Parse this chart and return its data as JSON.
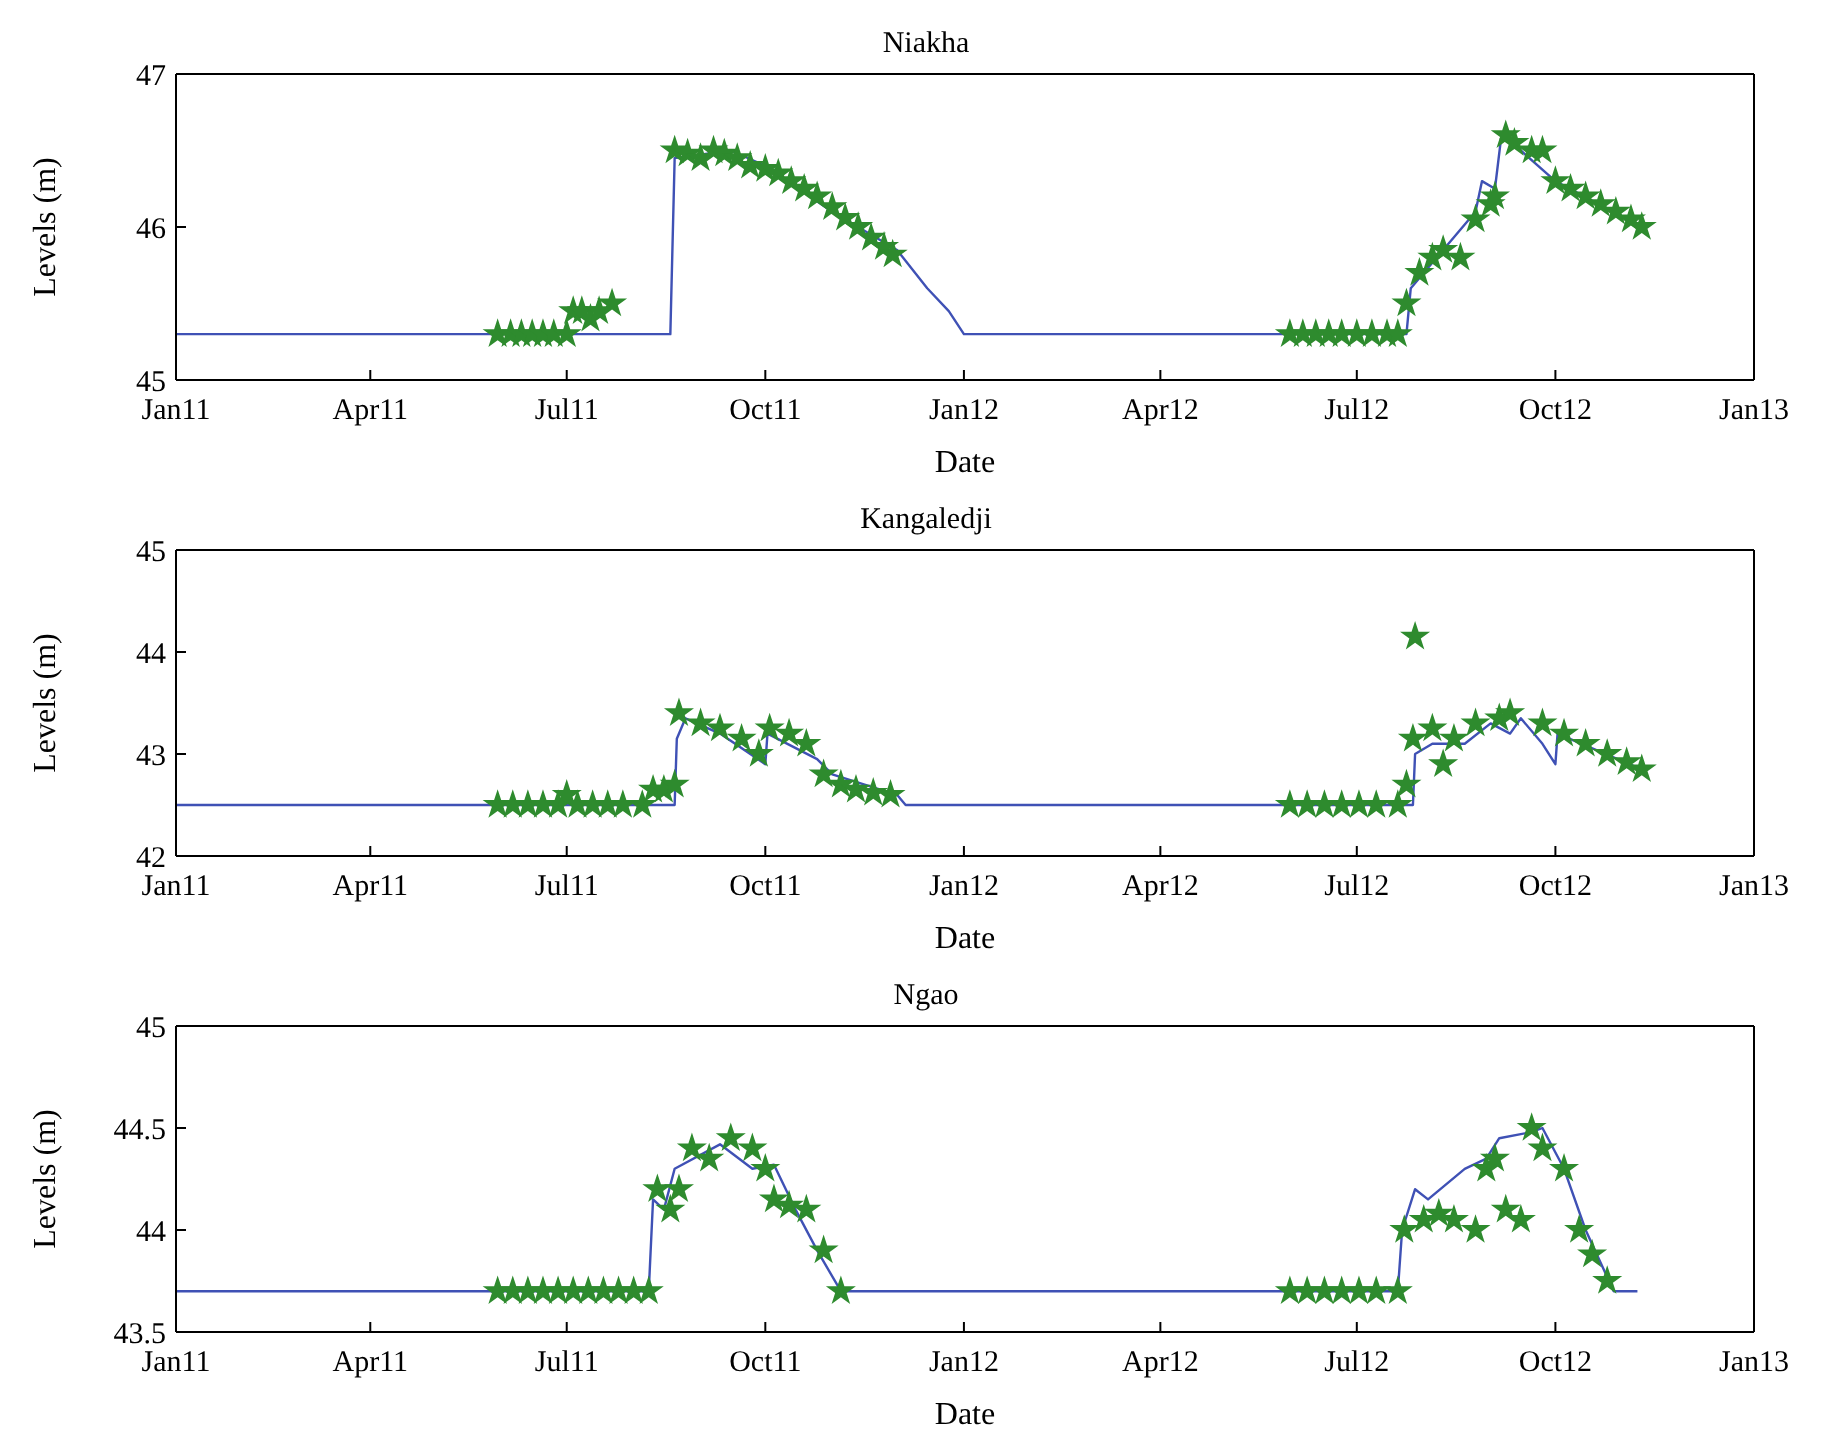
{
  "chart_data": [
    {
      "type": "line",
      "title": "Niakha",
      "xlabel": "Date",
      "ylabel": "Levels (m)",
      "xlim": [
        "2011-01-01",
        "2013-01-01"
      ],
      "xticks": [
        {
          "value": "2011-01-01",
          "label": "Jan11"
        },
        {
          "value": "2011-04-01",
          "label": "Apr11"
        },
        {
          "value": "2011-07-01",
          "label": "Jul11"
        },
        {
          "value": "2011-10-01",
          "label": "Oct11"
        },
        {
          "value": "2012-01-01",
          "label": "Jan12"
        },
        {
          "value": "2012-04-01",
          "label": "Apr12"
        },
        {
          "value": "2012-07-01",
          "label": "Jul12"
        },
        {
          "value": "2012-10-01",
          "label": "Oct12"
        },
        {
          "value": "2013-01-01",
          "label": "Jan13"
        }
      ],
      "ylim": [
        45,
        47
      ],
      "yticks": [
        45,
        46,
        47
      ],
      "grid": false,
      "legend": false,
      "series": [
        {
          "type": "line",
          "color": "#3f51b5",
          "marker": "none",
          "x": [
            "2011-01-01",
            "2011-08-18",
            "2011-08-20",
            "2011-09-15",
            "2011-10-01",
            "2011-11-01",
            "2011-12-01",
            "2011-12-15",
            "2011-12-25",
            "2012-01-01",
            "2012-07-24",
            "2012-07-26",
            "2012-08-10",
            "2012-08-25",
            "2012-08-28",
            "2012-09-03",
            "2012-09-06",
            "2012-09-15",
            "2012-10-01",
            "2012-11-10"
          ],
          "values": [
            45.3,
            45.3,
            46.45,
            46.5,
            46.4,
            46.1,
            45.85,
            45.6,
            45.45,
            45.3,
            45.3,
            45.6,
            45.85,
            46.1,
            46.3,
            46.25,
            46.6,
            46.5,
            46.3,
            46.0
          ]
        },
        {
          "type": "scatter",
          "color": "#2e8b2e",
          "marker": "star",
          "x": [
            "2011-05-30",
            "2011-06-05",
            "2011-06-10",
            "2011-06-15",
            "2011-06-20",
            "2011-06-25",
            "2011-07-01",
            "2011-07-04",
            "2011-07-08",
            "2011-07-12",
            "2011-07-16",
            "2011-07-22",
            "2011-08-20",
            "2011-08-26",
            "2011-09-01",
            "2011-09-07",
            "2011-09-12",
            "2011-09-18",
            "2011-09-24",
            "2011-10-01",
            "2011-10-07",
            "2011-10-13",
            "2011-10-19",
            "2011-10-25",
            "2011-11-01",
            "2011-11-07",
            "2011-11-13",
            "2011-11-19",
            "2011-11-25",
            "2011-11-29",
            "2012-05-31",
            "2012-06-06",
            "2012-06-12",
            "2012-06-18",
            "2012-06-24",
            "2012-07-01",
            "2012-07-08",
            "2012-07-15",
            "2012-07-20",
            "2012-07-24",
            "2012-07-30",
            "2012-08-05",
            "2012-08-10",
            "2012-08-18",
            "2012-08-25",
            "2012-09-01",
            "2012-09-03",
            "2012-09-08",
            "2012-09-12",
            "2012-09-20",
            "2012-09-25",
            "2012-10-01",
            "2012-10-08",
            "2012-10-15",
            "2012-10-22",
            "2012-10-29",
            "2012-11-05",
            "2012-11-10"
          ],
          "values": [
            45.3,
            45.3,
            45.3,
            45.3,
            45.3,
            45.3,
            45.3,
            45.45,
            45.45,
            45.4,
            45.45,
            45.5,
            46.5,
            46.48,
            46.45,
            46.5,
            46.48,
            46.45,
            46.4,
            46.38,
            46.35,
            46.3,
            46.25,
            46.2,
            46.13,
            46.06,
            46.0,
            45.93,
            45.87,
            45.82,
            45.3,
            45.3,
            45.3,
            45.3,
            45.3,
            45.3,
            45.3,
            45.3,
            45.3,
            45.5,
            45.7,
            45.8,
            45.85,
            45.8,
            46.05,
            46.15,
            46.2,
            46.6,
            46.55,
            46.5,
            46.5,
            46.3,
            46.25,
            46.2,
            46.15,
            46.1,
            46.05,
            46.0
          ]
        }
      ]
    },
    {
      "type": "line",
      "title": "Kangaledji",
      "xlabel": "Date",
      "ylabel": "Levels (m)",
      "xlim": [
        "2011-01-01",
        "2013-01-01"
      ],
      "xticks": [
        {
          "value": "2011-01-01",
          "label": "Jan11"
        },
        {
          "value": "2011-04-01",
          "label": "Apr11"
        },
        {
          "value": "2011-07-01",
          "label": "Jul11"
        },
        {
          "value": "2011-10-01",
          "label": "Oct11"
        },
        {
          "value": "2012-01-01",
          "label": "Jan12"
        },
        {
          "value": "2012-04-01",
          "label": "Apr12"
        },
        {
          "value": "2012-07-01",
          "label": "Jul12"
        },
        {
          "value": "2012-10-01",
          "label": "Oct12"
        },
        {
          "value": "2013-01-01",
          "label": "Jan13"
        }
      ],
      "ylim": [
        42,
        45
      ],
      "yticks": [
        42,
        43,
        44,
        45
      ],
      "grid": false,
      "legend": false,
      "series": [
        {
          "type": "line",
          "color": "#3f51b5",
          "marker": "none",
          "x": [
            "2011-01-01",
            "2011-08-20",
            "2011-08-21",
            "2011-08-25",
            "2011-09-10",
            "2011-10-01",
            "2011-10-02",
            "2011-10-25",
            "2011-11-01",
            "2011-12-01",
            "2011-12-05",
            "2012-07-27",
            "2012-07-28",
            "2012-08-05",
            "2012-08-20",
            "2012-09-01",
            "2012-09-10",
            "2012-09-15",
            "2012-09-25",
            "2012-10-01",
            "2012-10-02",
            "2012-11-10"
          ],
          "values": [
            42.5,
            42.5,
            43.15,
            43.35,
            43.2,
            42.9,
            43.2,
            42.95,
            42.8,
            42.6,
            42.5,
            42.5,
            43.0,
            43.1,
            43.1,
            43.3,
            43.2,
            43.35,
            43.1,
            42.9,
            43.2,
            42.85
          ]
        },
        {
          "type": "scatter",
          "color": "#2e8b2e",
          "marker": "star",
          "x": [
            "2011-05-30",
            "2011-06-06",
            "2011-06-13",
            "2011-06-20",
            "2011-06-27",
            "2011-07-01",
            "2011-07-06",
            "2011-07-13",
            "2011-07-20",
            "2011-07-27",
            "2011-08-05",
            "2011-08-10",
            "2011-08-15",
            "2011-08-20",
            "2011-08-22",
            "2011-09-01",
            "2011-09-10",
            "2011-09-20",
            "2011-09-28",
            "2011-10-03",
            "2011-10-12",
            "2011-10-20",
            "2011-10-28",
            "2011-11-05",
            "2011-11-12",
            "2011-11-20",
            "2011-11-28",
            "2012-05-31",
            "2012-06-08",
            "2012-06-16",
            "2012-06-24",
            "2012-07-02",
            "2012-07-10",
            "2012-07-20",
            "2012-07-24",
            "2012-07-27",
            "2012-07-28",
            "2012-08-05",
            "2012-08-10",
            "2012-08-15",
            "2012-08-25",
            "2012-09-05",
            "2012-09-10",
            "2012-09-25",
            "2012-10-05",
            "2012-10-15",
            "2012-10-25",
            "2012-11-03",
            "2012-11-10"
          ],
          "values": [
            42.5,
            42.5,
            42.5,
            42.5,
            42.5,
            42.6,
            42.5,
            42.5,
            42.5,
            42.5,
            42.5,
            42.65,
            42.65,
            42.7,
            43.4,
            43.3,
            43.25,
            43.15,
            43.0,
            43.25,
            43.2,
            43.1,
            42.8,
            42.7,
            42.65,
            42.62,
            42.6,
            42.5,
            42.5,
            42.5,
            42.5,
            42.5,
            42.5,
            42.5,
            42.7,
            43.15,
            44.15,
            43.25,
            42.9,
            43.15,
            43.3,
            43.35,
            43.4,
            43.3,
            43.2,
            43.1,
            43.0,
            42.92,
            42.85
          ]
        }
      ]
    },
    {
      "type": "line",
      "title": "Ngao",
      "xlabel": "Date",
      "ylabel": "Levels (m)",
      "xlim": [
        "2011-01-01",
        "2013-01-01"
      ],
      "xticks": [
        {
          "value": "2011-01-01",
          "label": "Jan11"
        },
        {
          "value": "2011-04-01",
          "label": "Apr11"
        },
        {
          "value": "2011-07-01",
          "label": "Jul11"
        },
        {
          "value": "2011-10-01",
          "label": "Oct11"
        },
        {
          "value": "2012-01-01",
          "label": "Jan12"
        },
        {
          "value": "2012-04-01",
          "label": "Apr12"
        },
        {
          "value": "2012-07-01",
          "label": "Jul12"
        },
        {
          "value": "2012-10-01",
          "label": "Oct12"
        },
        {
          "value": "2013-01-01",
          "label": "Jan13"
        }
      ],
      "ylim": [
        43.5,
        45
      ],
      "yticks": [
        43.5,
        44,
        44.5,
        45
      ],
      "grid": false,
      "legend": false,
      "series": [
        {
          "type": "line",
          "color": "#3f51b5",
          "marker": "none",
          "x": [
            "2011-01-01",
            "2011-08-08",
            "2011-08-10",
            "2011-08-15",
            "2011-08-20",
            "2011-09-10",
            "2011-09-25",
            "2011-10-05",
            "2011-10-15",
            "2011-10-25",
            "2011-11-05",
            "2012-07-20",
            "2012-07-22",
            "2012-07-28",
            "2012-08-03",
            "2012-08-20",
            "2012-08-30",
            "2012-09-05",
            "2012-09-20",
            "2012-09-25",
            "2012-10-05",
            "2012-10-15",
            "2012-10-28",
            "2012-11-08"
          ],
          "values": [
            43.7,
            43.7,
            44.15,
            44.1,
            44.3,
            44.42,
            44.3,
            44.32,
            44.1,
            43.9,
            43.7,
            43.7,
            44.0,
            44.2,
            44.15,
            44.3,
            44.35,
            44.45,
            44.48,
            44.5,
            44.3,
            44.0,
            43.7,
            43.7
          ]
        },
        {
          "type": "scatter",
          "color": "#2e8b2e",
          "marker": "star",
          "x": [
            "2011-05-30",
            "2011-06-06",
            "2011-06-13",
            "2011-06-20",
            "2011-06-27",
            "2011-07-04",
            "2011-07-11",
            "2011-07-18",
            "2011-07-25",
            "2011-08-01",
            "2011-08-08",
            "2011-08-12",
            "2011-08-18",
            "2011-08-22",
            "2011-08-28",
            "2011-09-05",
            "2011-09-15",
            "2011-09-25",
            "2011-10-01",
            "2011-10-05",
            "2011-10-12",
            "2011-10-20",
            "2011-10-28",
            "2011-11-05",
            "2012-05-31",
            "2012-06-08",
            "2012-06-16",
            "2012-06-24",
            "2012-07-02",
            "2012-07-10",
            "2012-07-20",
            "2012-07-23",
            "2012-08-01",
            "2012-08-08",
            "2012-08-15",
            "2012-08-25",
            "2012-08-30",
            "2012-09-03",
            "2012-09-08",
            "2012-09-15",
            "2012-09-20",
            "2012-09-25",
            "2012-10-05",
            "2012-10-12",
            "2012-10-18",
            "2012-10-25"
          ],
          "values": [
            43.7,
            43.7,
            43.7,
            43.7,
            43.7,
            43.7,
            43.7,
            43.7,
            43.7,
            43.7,
            43.7,
            44.2,
            44.1,
            44.2,
            44.4,
            44.35,
            44.45,
            44.4,
            44.3,
            44.15,
            44.12,
            44.1,
            43.9,
            43.7,
            43.7,
            43.7,
            43.7,
            43.7,
            43.7,
            43.7,
            43.7,
            44.0,
            44.05,
            44.08,
            44.05,
            44.0,
            44.3,
            44.35,
            44.1,
            44.05,
            44.5,
            44.4,
            44.3,
            44.0,
            43.88,
            43.75
          ]
        }
      ]
    }
  ]
}
